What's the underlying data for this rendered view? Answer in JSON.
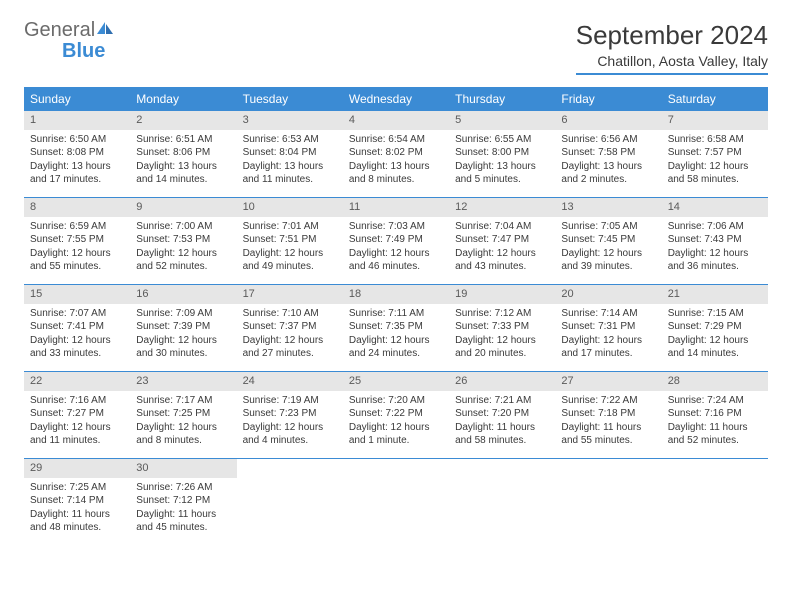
{
  "logo": {
    "text1": "General",
    "text2": "Blue"
  },
  "header": {
    "month_title": "September 2024",
    "location": "Chatillon, Aosta Valley, Italy"
  },
  "colors": {
    "brand_blue": "#3b8bd4",
    "header_text": "#ffffff",
    "daynum_bg": "#e6e6e6",
    "body_text": "#3a3a3a",
    "logo_gray": "#6b6b6b"
  },
  "day_headers": [
    "Sunday",
    "Monday",
    "Tuesday",
    "Wednesday",
    "Thursday",
    "Friday",
    "Saturday"
  ],
  "weeks": [
    [
      {
        "n": "1",
        "sr": "Sunrise: 6:50 AM",
        "ss": "Sunset: 8:08 PM",
        "d1": "Daylight: 13 hours",
        "d2": "and 17 minutes."
      },
      {
        "n": "2",
        "sr": "Sunrise: 6:51 AM",
        "ss": "Sunset: 8:06 PM",
        "d1": "Daylight: 13 hours",
        "d2": "and 14 minutes."
      },
      {
        "n": "3",
        "sr": "Sunrise: 6:53 AM",
        "ss": "Sunset: 8:04 PM",
        "d1": "Daylight: 13 hours",
        "d2": "and 11 minutes."
      },
      {
        "n": "4",
        "sr": "Sunrise: 6:54 AM",
        "ss": "Sunset: 8:02 PM",
        "d1": "Daylight: 13 hours",
        "d2": "and 8 minutes."
      },
      {
        "n": "5",
        "sr": "Sunrise: 6:55 AM",
        "ss": "Sunset: 8:00 PM",
        "d1": "Daylight: 13 hours",
        "d2": "and 5 minutes."
      },
      {
        "n": "6",
        "sr": "Sunrise: 6:56 AM",
        "ss": "Sunset: 7:58 PM",
        "d1": "Daylight: 13 hours",
        "d2": "and 2 minutes."
      },
      {
        "n": "7",
        "sr": "Sunrise: 6:58 AM",
        "ss": "Sunset: 7:57 PM",
        "d1": "Daylight: 12 hours",
        "d2": "and 58 minutes."
      }
    ],
    [
      {
        "n": "8",
        "sr": "Sunrise: 6:59 AM",
        "ss": "Sunset: 7:55 PM",
        "d1": "Daylight: 12 hours",
        "d2": "and 55 minutes."
      },
      {
        "n": "9",
        "sr": "Sunrise: 7:00 AM",
        "ss": "Sunset: 7:53 PM",
        "d1": "Daylight: 12 hours",
        "d2": "and 52 minutes."
      },
      {
        "n": "10",
        "sr": "Sunrise: 7:01 AM",
        "ss": "Sunset: 7:51 PM",
        "d1": "Daylight: 12 hours",
        "d2": "and 49 minutes."
      },
      {
        "n": "11",
        "sr": "Sunrise: 7:03 AM",
        "ss": "Sunset: 7:49 PM",
        "d1": "Daylight: 12 hours",
        "d2": "and 46 minutes."
      },
      {
        "n": "12",
        "sr": "Sunrise: 7:04 AM",
        "ss": "Sunset: 7:47 PM",
        "d1": "Daylight: 12 hours",
        "d2": "and 43 minutes."
      },
      {
        "n": "13",
        "sr": "Sunrise: 7:05 AM",
        "ss": "Sunset: 7:45 PM",
        "d1": "Daylight: 12 hours",
        "d2": "and 39 minutes."
      },
      {
        "n": "14",
        "sr": "Sunrise: 7:06 AM",
        "ss": "Sunset: 7:43 PM",
        "d1": "Daylight: 12 hours",
        "d2": "and 36 minutes."
      }
    ],
    [
      {
        "n": "15",
        "sr": "Sunrise: 7:07 AM",
        "ss": "Sunset: 7:41 PM",
        "d1": "Daylight: 12 hours",
        "d2": "and 33 minutes."
      },
      {
        "n": "16",
        "sr": "Sunrise: 7:09 AM",
        "ss": "Sunset: 7:39 PM",
        "d1": "Daylight: 12 hours",
        "d2": "and 30 minutes."
      },
      {
        "n": "17",
        "sr": "Sunrise: 7:10 AM",
        "ss": "Sunset: 7:37 PM",
        "d1": "Daylight: 12 hours",
        "d2": "and 27 minutes."
      },
      {
        "n": "18",
        "sr": "Sunrise: 7:11 AM",
        "ss": "Sunset: 7:35 PM",
        "d1": "Daylight: 12 hours",
        "d2": "and 24 minutes."
      },
      {
        "n": "19",
        "sr": "Sunrise: 7:12 AM",
        "ss": "Sunset: 7:33 PM",
        "d1": "Daylight: 12 hours",
        "d2": "and 20 minutes."
      },
      {
        "n": "20",
        "sr": "Sunrise: 7:14 AM",
        "ss": "Sunset: 7:31 PM",
        "d1": "Daylight: 12 hours",
        "d2": "and 17 minutes."
      },
      {
        "n": "21",
        "sr": "Sunrise: 7:15 AM",
        "ss": "Sunset: 7:29 PM",
        "d1": "Daylight: 12 hours",
        "d2": "and 14 minutes."
      }
    ],
    [
      {
        "n": "22",
        "sr": "Sunrise: 7:16 AM",
        "ss": "Sunset: 7:27 PM",
        "d1": "Daylight: 12 hours",
        "d2": "and 11 minutes."
      },
      {
        "n": "23",
        "sr": "Sunrise: 7:17 AM",
        "ss": "Sunset: 7:25 PM",
        "d1": "Daylight: 12 hours",
        "d2": "and 8 minutes."
      },
      {
        "n": "24",
        "sr": "Sunrise: 7:19 AM",
        "ss": "Sunset: 7:23 PM",
        "d1": "Daylight: 12 hours",
        "d2": "and 4 minutes."
      },
      {
        "n": "25",
        "sr": "Sunrise: 7:20 AM",
        "ss": "Sunset: 7:22 PM",
        "d1": "Daylight: 12 hours",
        "d2": "and 1 minute."
      },
      {
        "n": "26",
        "sr": "Sunrise: 7:21 AM",
        "ss": "Sunset: 7:20 PM",
        "d1": "Daylight: 11 hours",
        "d2": "and 58 minutes."
      },
      {
        "n": "27",
        "sr": "Sunrise: 7:22 AM",
        "ss": "Sunset: 7:18 PM",
        "d1": "Daylight: 11 hours",
        "d2": "and 55 minutes."
      },
      {
        "n": "28",
        "sr": "Sunrise: 7:24 AM",
        "ss": "Sunset: 7:16 PM",
        "d1": "Daylight: 11 hours",
        "d2": "and 52 minutes."
      }
    ],
    [
      {
        "n": "29",
        "sr": "Sunrise: 7:25 AM",
        "ss": "Sunset: 7:14 PM",
        "d1": "Daylight: 11 hours",
        "d2": "and 48 minutes."
      },
      {
        "n": "30",
        "sr": "Sunrise: 7:26 AM",
        "ss": "Sunset: 7:12 PM",
        "d1": "Daylight: 11 hours",
        "d2": "and 45 minutes."
      },
      null,
      null,
      null,
      null,
      null
    ]
  ]
}
